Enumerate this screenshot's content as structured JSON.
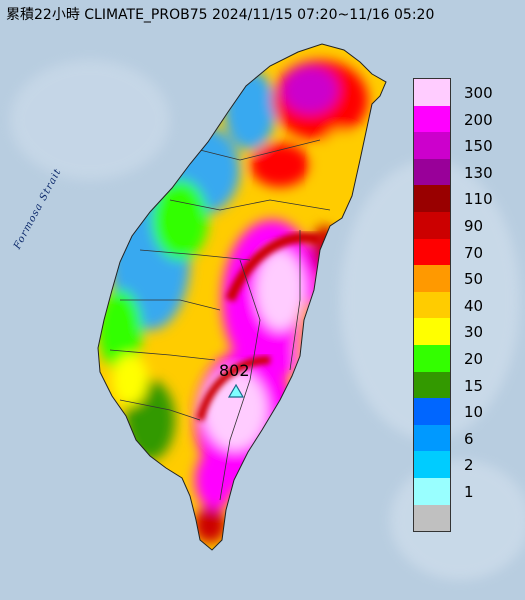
{
  "header": {
    "title": "累積22小時 CLIMATE_PROB75 2024/11/15 07:20~11/16 05:20"
  },
  "map": {
    "sea_label": "Formosa Strait",
    "max_marker_value": "802",
    "sea_color": "#b8cde0",
    "land_colors": {
      "low": "#39a9f0",
      "mid": "#ffcc00",
      "high": "#ff00ff",
      "peak": "#ffccff"
    }
  },
  "legend": {
    "levels": [
      {
        "label": "300",
        "color": "#ffccff"
      },
      {
        "label": "200",
        "color": "#ff00ff"
      },
      {
        "label": "150",
        "color": "#cc00cc"
      },
      {
        "label": "130",
        "color": "#990099"
      },
      {
        "label": "110",
        "color": "#990000"
      },
      {
        "label": "90",
        "color": "#cc0000"
      },
      {
        "label": "70",
        "color": "#ff0000"
      },
      {
        "label": "50",
        "color": "#ff9900"
      },
      {
        "label": "40",
        "color": "#ffcc00"
      },
      {
        "label": "30",
        "color": "#ffff00"
      },
      {
        "label": "20",
        "color": "#33ff00"
      },
      {
        "label": "15",
        "color": "#339900"
      },
      {
        "label": "10",
        "color": "#0066ff"
      },
      {
        "label": "6",
        "color": "#0099ff"
      },
      {
        "label": "2",
        "color": "#00ccff"
      },
      {
        "label": "1",
        "color": "#99ffff"
      },
      {
        "label": "",
        "color": "#c0c0c0"
      }
    ]
  }
}
